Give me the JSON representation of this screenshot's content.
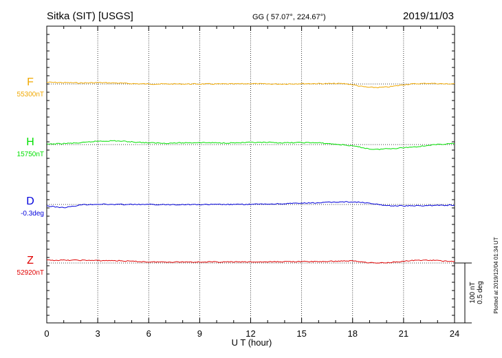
{
  "header": {
    "station": "Sitka (SIT)  [USGS]",
    "coords": "GG ( 57.07°, 224.67°)",
    "date": "2019/11/03"
  },
  "footer": {
    "plotted": "Plotted at 2019/12/04 01:34 UT"
  },
  "scale": {
    "nt": "100 nT",
    "deg": "0.5 deg"
  },
  "chart_data": {
    "type": "line",
    "xlabel": "U T (hour)",
    "xlim": [
      0,
      24
    ],
    "xticks": [
      0,
      3,
      6,
      9,
      12,
      15,
      18,
      21,
      24
    ],
    "grid": true,
    "series": [
      {
        "name": "F",
        "baseline_label": "55300nT",
        "units": "nT",
        "baseline": 55300,
        "color": "#f0a800",
        "x": [
          0,
          1,
          2,
          3,
          4,
          5,
          6,
          7,
          8,
          9,
          10,
          11,
          12,
          13,
          14,
          15,
          16,
          17,
          17.5,
          18,
          18.5,
          19,
          19.5,
          20,
          20.5,
          21,
          21.5,
          22,
          22.5,
          23,
          23.5,
          24
        ],
        "y": [
          5,
          4,
          3,
          4,
          3,
          1,
          0,
          0,
          0,
          0,
          0,
          0,
          1,
          0,
          0,
          1,
          1,
          1,
          1,
          -2,
          -7,
          -10,
          -10,
          -9,
          -6,
          -2,
          0,
          1,
          2,
          1,
          0,
          1
        ]
      },
      {
        "name": "H",
        "baseline_label": "15750nT",
        "units": "nT",
        "baseline": 15750,
        "color": "#00e000",
        "x": [
          0,
          1,
          2,
          3,
          4,
          5,
          6,
          7,
          8,
          9,
          10,
          11,
          12,
          13,
          14,
          15,
          16,
          17,
          17.5,
          18,
          18.5,
          19,
          19.5,
          20,
          20.5,
          21,
          21.5,
          22,
          22.5,
          23,
          23.5,
          24
        ],
        "y": [
          1,
          3,
          5,
          10,
          11,
          8,
          5,
          4,
          5,
          6,
          5,
          5,
          6,
          6,
          5,
          6,
          5,
          1,
          -1,
          -4,
          -8,
          -13,
          -14,
          -12,
          -11,
          -9,
          -7,
          -5,
          -2,
          0,
          2,
          3
        ]
      },
      {
        "name": "D",
        "baseline_label": "-0.3deg",
        "units": "deg",
        "baseline": -0.3,
        "color": "#0000dc",
        "x": [
          0,
          0.5,
          1,
          1.5,
          2,
          3,
          4,
          5,
          6,
          7,
          8,
          9,
          10,
          11,
          12,
          13,
          14,
          15,
          16,
          17,
          17.5,
          18,
          18.5,
          19,
          19.5,
          20,
          20.5,
          21,
          21.5,
          22,
          22.5,
          23,
          23.5,
          24
        ],
        "y": [
          -0.02,
          -0.035,
          -0.045,
          -0.03,
          -0.005,
          0.005,
          0.0,
          0.0,
          0.0,
          -0.002,
          0.0,
          -0.002,
          0.0,
          0.0,
          0.002,
          0.006,
          0.012,
          0.018,
          0.025,
          0.035,
          0.038,
          0.037,
          0.03,
          0.015,
          0.0,
          -0.015,
          -0.02,
          -0.02,
          -0.02,
          -0.018,
          -0.015,
          -0.013,
          -0.012,
          -0.01
        ]
      },
      {
        "name": "Z",
        "baseline_label": "52920nT",
        "units": "nT",
        "baseline": 52920,
        "color": "#e00000",
        "x": [
          0,
          1,
          2,
          3,
          4,
          5,
          6,
          7,
          8,
          9,
          10,
          11,
          12,
          13,
          14,
          15,
          16,
          17,
          17.5,
          18,
          18.5,
          19,
          19.5,
          20,
          20.5,
          21,
          21.5,
          22,
          22.5,
          23,
          23.5,
          24
        ],
        "y": [
          8,
          8,
          8,
          7,
          7,
          5,
          3,
          3,
          3,
          3,
          3,
          3,
          3,
          3,
          4,
          4,
          4,
          5,
          6,
          6,
          4,
          1,
          0,
          1,
          3,
          5,
          7,
          8,
          8,
          7,
          5,
          5
        ]
      }
    ],
    "scale_bar": {
      "nT": 100,
      "deg": 0.5
    }
  }
}
